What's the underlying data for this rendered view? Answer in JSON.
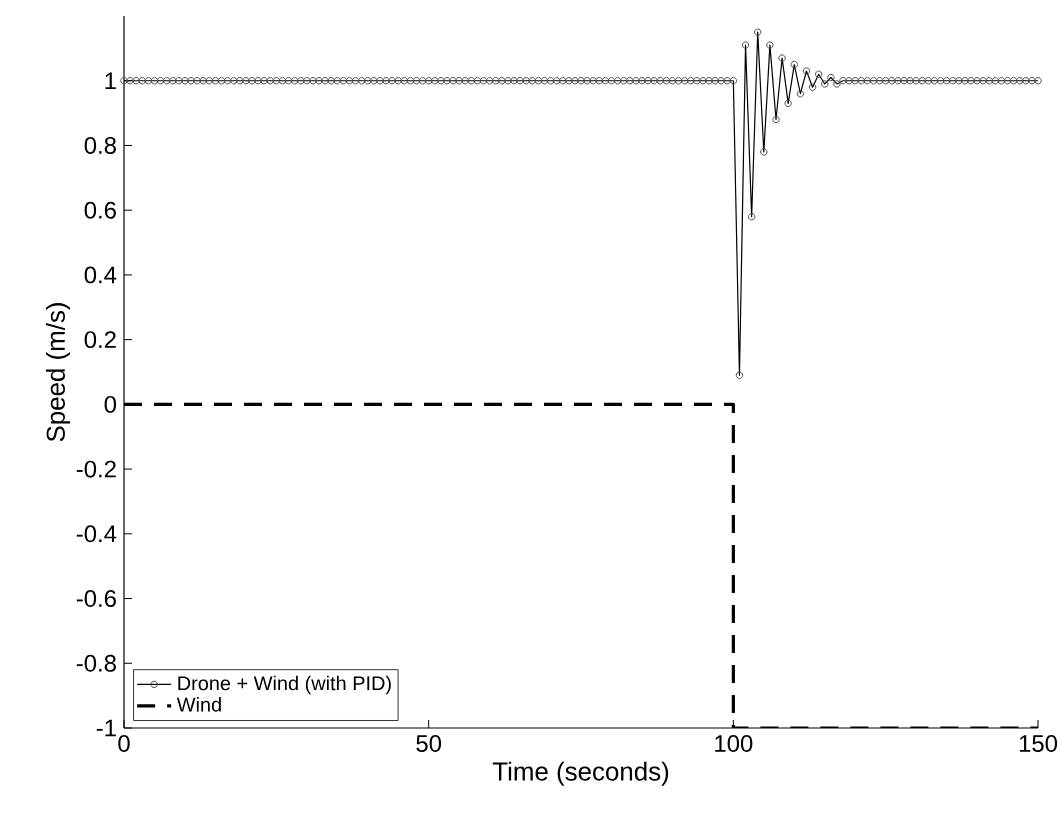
{
  "chart_data": {
    "type": "line",
    "xlabel": "Time (seconds)",
    "ylabel": "Speed (m/s)",
    "xlim": [
      0,
      150
    ],
    "ylim": [
      -1,
      1.2
    ],
    "xticks": [
      0,
      50,
      100,
      150
    ],
    "yticks": [
      -1,
      -0.8,
      -0.6,
      -0.4,
      -0.2,
      0,
      0.2,
      0.4,
      0.6,
      0.8,
      1
    ],
    "grid": false,
    "legend": "bottom left",
    "series": [
      {
        "name": "Drone + Wind (with PID)",
        "color": "#000000",
        "marker": "circle",
        "line_style": "solid",
        "x": [
          0,
          1,
          2,
          3,
          4,
          5,
          6,
          7,
          8,
          9,
          10,
          11,
          12,
          13,
          14,
          15,
          16,
          17,
          18,
          19,
          20,
          21,
          22,
          23,
          24,
          25,
          26,
          27,
          28,
          29,
          30,
          31,
          32,
          33,
          34,
          35,
          36,
          37,
          38,
          39,
          40,
          41,
          42,
          43,
          44,
          45,
          46,
          47,
          48,
          49,
          50,
          51,
          52,
          53,
          54,
          55,
          56,
          57,
          58,
          59,
          60,
          61,
          62,
          63,
          64,
          65,
          66,
          67,
          68,
          69,
          70,
          71,
          72,
          73,
          74,
          75,
          76,
          77,
          78,
          79,
          80,
          81,
          82,
          83,
          84,
          85,
          86,
          87,
          88,
          89,
          90,
          91,
          92,
          93,
          94,
          95,
          96,
          97,
          98,
          99,
          100,
          101,
          102,
          103,
          104,
          105,
          106,
          107,
          108,
          109,
          110,
          111,
          112,
          113,
          114,
          115,
          116,
          117,
          118,
          119,
          120,
          121,
          122,
          123,
          124,
          125,
          126,
          127,
          128,
          129,
          130,
          131,
          132,
          133,
          134,
          135,
          136,
          137,
          138,
          139,
          140,
          141,
          142,
          143,
          144,
          145,
          146,
          147,
          148,
          149,
          150
        ],
        "values": [
          1,
          1,
          1,
          1,
          1,
          1,
          1,
          1,
          1,
          1,
          1,
          1,
          1,
          1,
          1,
          1,
          1,
          1,
          1,
          1,
          1,
          1,
          1,
          1,
          1,
          1,
          1,
          1,
          1,
          1,
          1,
          1,
          1,
          1,
          1,
          1,
          1,
          1,
          1,
          1,
          1,
          1,
          1,
          1,
          1,
          1,
          1,
          1,
          1,
          1,
          1,
          1,
          1,
          1,
          1,
          1,
          1,
          1,
          1,
          1,
          1,
          1,
          1,
          1,
          1,
          1,
          1,
          1,
          1,
          1,
          1,
          1,
          1,
          1,
          1,
          1,
          1,
          1,
          1,
          1,
          1,
          1,
          1,
          1,
          1,
          1,
          1,
          1,
          1,
          1,
          1,
          1,
          1,
          1,
          1,
          1,
          1,
          1,
          1,
          1,
          1,
          0.09,
          1.11,
          0.58,
          1.15,
          0.78,
          1.11,
          0.88,
          1.07,
          0.93,
          1.05,
          0.96,
          1.03,
          0.98,
          1.02,
          0.99,
          1.01,
          0.99,
          1,
          1,
          1,
          1,
          1,
          1,
          1,
          1,
          1,
          1,
          1,
          1,
          1,
          1,
          1,
          1,
          1,
          1,
          1,
          1,
          1,
          1,
          1,
          1,
          1,
          1,
          1,
          1,
          1,
          1,
          1,
          1,
          1
        ]
      },
      {
        "name": "Wind",
        "color": "#000000",
        "marker": "none",
        "line_style": "dashed",
        "x": [
          0,
          100,
          100,
          150
        ],
        "values": [
          0,
          0,
          -1,
          -1
        ]
      }
    ]
  }
}
